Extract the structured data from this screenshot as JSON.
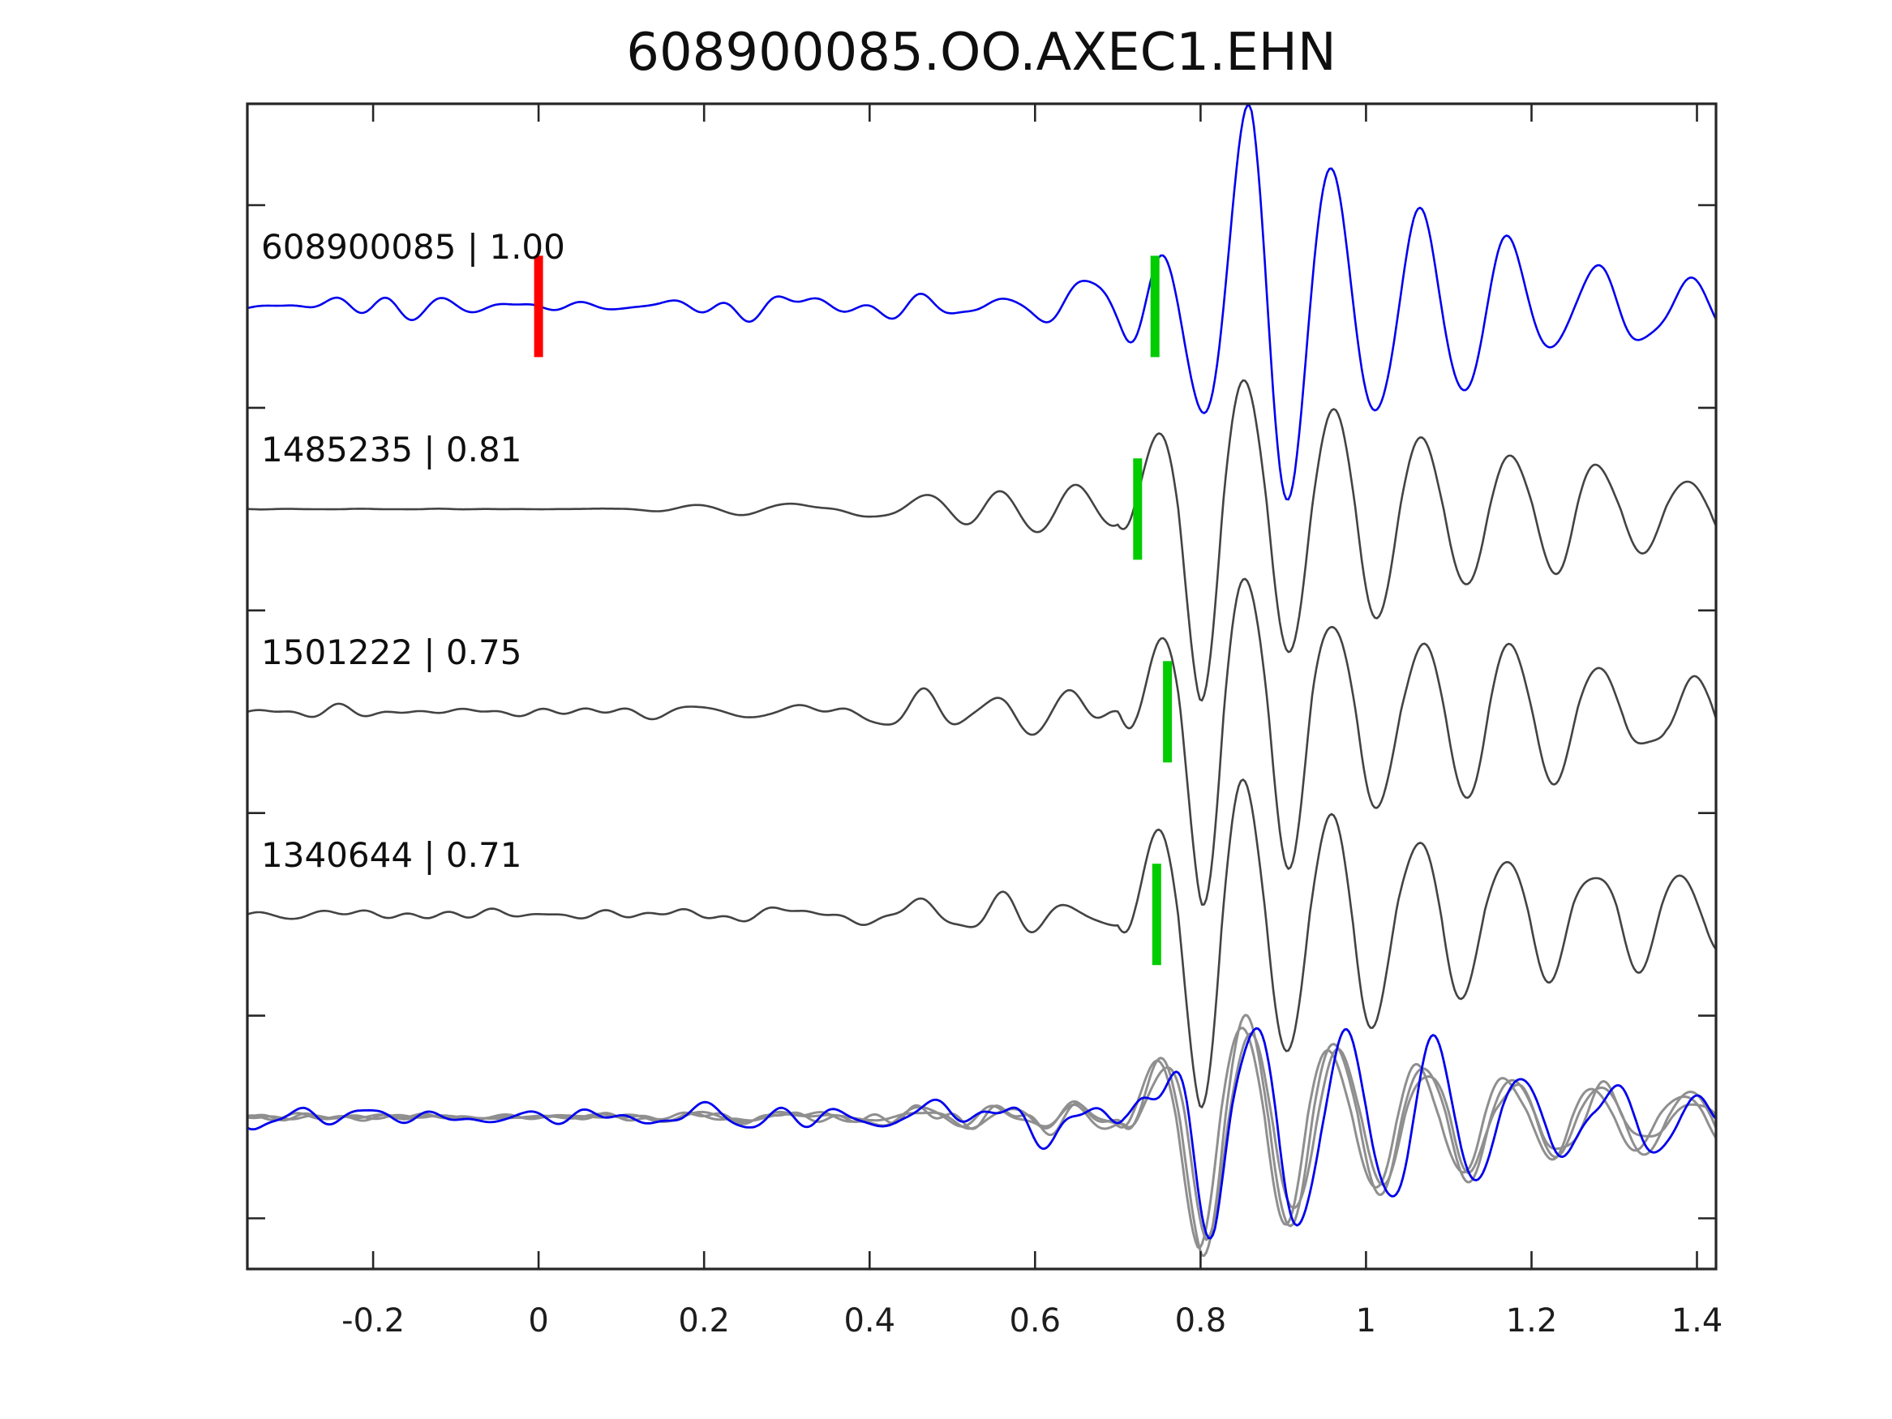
{
  "chart_data": {
    "type": "line",
    "title": "608900085.OO.AXEC1.EHN",
    "xlabel": "",
    "ylabel": "",
    "grid": false,
    "legend": "none",
    "xlim": [
      -0.352,
      1.423
    ],
    "row_ylim": [
      -1.0,
      4.75
    ],
    "xticks": [
      -0.2,
      0,
      0.2,
      0.4,
      0.6,
      0.8,
      1,
      1.2,
      1.4
    ],
    "xtick_labels": [
      "-0.2",
      "0",
      "0.2",
      "0.4",
      "0.6",
      "0.8",
      "1",
      "1.2",
      "1.4"
    ],
    "ytick_rows": [
      -0.5,
      0.5,
      1.5,
      2.5,
      3.5,
      4.5
    ],
    "colors": {
      "reference_trace": "#0000ee",
      "candidate_trace": "#434343",
      "overlay_gray": "#8f8f8f",
      "pick_green": "#00cc00",
      "origin_red": "#ff0000",
      "frame": "#262626",
      "text": "#0f0f0f"
    },
    "marker_half_rows": 0.25,
    "marker_width_px": 11,
    "traces": [
      {
        "label": "608900085 | 1.00",
        "event_id": "608900085",
        "correlation": 1.0,
        "row": 0,
        "color_key": "reference_trace",
        "pick_t": 0.745,
        "origin_marker_t": 0.0,
        "synth": {
          "seed": 11,
          "noise_amp": 0.033,
          "flat_until": null,
          "pre_amp": 0.105,
          "onset": 0.722,
          "T": 0.106,
          "amp": 0.82,
          "neg_mult": 1.02,
          "attack": 0.16,
          "rise_exp": 1.5,
          "decay": 0.21,
          "tail": 0.2,
          "tail_tau": 1.1
        }
      },
      {
        "label": "1485235 | 0.81",
        "event_id": "1485235",
        "correlation": 0.81,
        "row": 1,
        "color_key": "candidate_trace",
        "pick_t": 0.724,
        "origin_marker_t": null,
        "synth": {
          "seed": 23,
          "noise_amp": 0.013,
          "flat_until": 0.13,
          "pre_amp": 0.11,
          "onset": 0.72,
          "T": 0.107,
          "amp": 0.62,
          "neg_mult": 1.28,
          "attack": 0.1,
          "rise_exp": 1.0,
          "decay": 0.3,
          "tail": 0.2,
          "tail_tau": 1.0
        }
      },
      {
        "label": "1501222 | 0.75",
        "event_id": "1501222",
        "correlation": 0.75,
        "row": 2,
        "color_key": "candidate_trace",
        "pick_t": 0.76,
        "origin_marker_t": null,
        "synth": {
          "seed": 37,
          "noise_amp": 0.03,
          "flat_until": null,
          "pre_amp": 0.11,
          "onset": 0.721,
          "T": 0.107,
          "amp": 0.61,
          "neg_mult": 1.28,
          "attack": 0.1,
          "rise_exp": 1.0,
          "decay": 0.3,
          "tail": 0.2,
          "tail_tau": 1.0
        }
      },
      {
        "label": "1340644 | 0.71",
        "event_id": "1340644",
        "correlation": 0.71,
        "row": 3,
        "color_key": "candidate_trace",
        "pick_t": 0.747,
        "origin_marker_t": null,
        "synth": {
          "seed": 49,
          "noise_amp": 0.027,
          "flat_until": null,
          "pre_amp": 0.1,
          "onset": 0.72,
          "T": 0.106,
          "amp": 0.59,
          "neg_mult": 1.3,
          "attack": 0.1,
          "rise_exp": 1.0,
          "decay": 0.3,
          "tail": 0.2,
          "tail_tau": 1.0
        }
      }
    ],
    "overlay": {
      "row": 4,
      "series": [
        {
          "name": "overlay-candidate-1",
          "color_key": "overlay_gray",
          "synth": {
            "seed": 61,
            "noise_amp": 0.015,
            "flat_until": null,
            "pre_amp": 0.065,
            "onset": 0.722,
            "T": 0.107,
            "amp": 0.45,
            "neg_mult": 1.3,
            "attack": 0.1,
            "rise_exp": 1.0,
            "decay": 0.3,
            "tail": 0.2,
            "tail_tau": 1.0
          }
        },
        {
          "name": "overlay-candidate-2",
          "color_key": "overlay_gray",
          "synth": {
            "seed": 62,
            "noise_amp": 0.014,
            "flat_until": null,
            "pre_amp": 0.06,
            "onset": 0.718,
            "T": 0.106,
            "amp": 0.42,
            "neg_mult": 1.3,
            "attack": 0.1,
            "rise_exp": 1.0,
            "decay": 0.3,
            "tail": 0.2,
            "tail_tau": 1.0
          }
        },
        {
          "name": "overlay-candidate-3",
          "color_key": "overlay_gray",
          "synth": {
            "seed": 63,
            "noise_amp": 0.016,
            "flat_until": null,
            "pre_amp": 0.062,
            "onset": 0.727,
            "T": 0.107,
            "amp": 0.4,
            "neg_mult": 1.28,
            "attack": 0.1,
            "rise_exp": 1.0,
            "decay": 0.3,
            "tail": 0.2,
            "tail_tau": 1.0
          }
        },
        {
          "name": "overlay-reference",
          "color_key": "reference_trace",
          "synth": {
            "seed": 77,
            "noise_amp": 0.048,
            "flat_until": null,
            "pre_amp": 0.07,
            "onset": 0.728,
            "T": 0.109,
            "amp": 0.42,
            "neg_mult": 1.2,
            "attack": 0.11,
            "rise_exp": 1.3,
            "decay": 0.3,
            "tail": 0.22,
            "tail_tau": 1.0
          }
        }
      ]
    }
  }
}
